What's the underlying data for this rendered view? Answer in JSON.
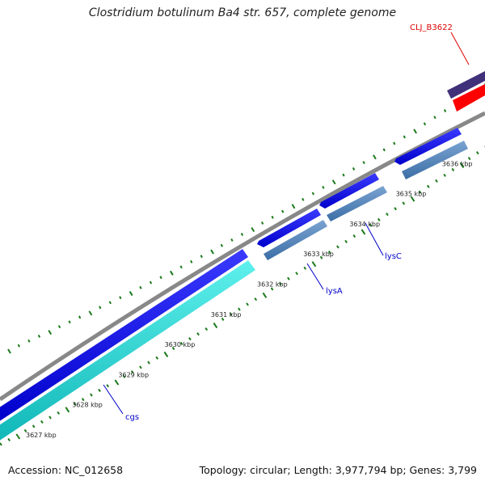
{
  "title": "Clostridium botulinum Ba4 str. 657, complete genome",
  "accession": "Accession: NC_012658",
  "summary": "Topology: circular; Length: 3,977,794 bp; Genes: 3,799",
  "tick_labels": [
    "3627 kbp",
    "3628 kbp",
    "3629 kbp",
    "3630 kbp",
    "3631 kbp",
    "3632 kbp",
    "3633 kbp",
    "3634 kbp",
    "3635 kbp",
    "3636 kbp"
  ],
  "gene_labels": [
    {
      "name": "cgs",
      "color": "#0000cc"
    },
    {
      "name": "lysA",
      "color": "#0000cc"
    },
    {
      "name": "lysC",
      "color": "#0000cc"
    },
    {
      "name": "CLJ_B3622",
      "color": "#dd0000"
    }
  ],
  "colors": {
    "backbone": "#888888",
    "forward_cds": "#0000ee",
    "reverse_cds_steel": "#4a7fb5",
    "reverse_cds_cyan": "#1fcfcf",
    "other_feature": "#40307a",
    "highlight_feature": "#ff0000",
    "tick": "#1a7a1a"
  }
}
